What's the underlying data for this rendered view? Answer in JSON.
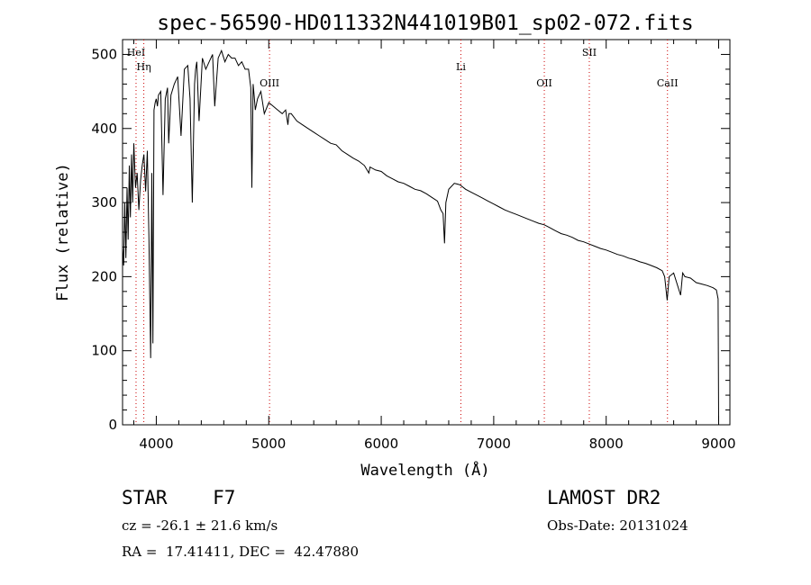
{
  "chart_data": {
    "type": "line",
    "title": "spec-56590-HD011332N441019B01_sp02-072.fits",
    "xlabel": "Wavelength (Å)",
    "ylabel": "Flux (relative)",
    "xlim": [
      3700,
      9100
    ],
    "ylim": [
      0,
      520
    ],
    "xticks": [
      4000,
      5000,
      6000,
      7000,
      8000,
      9000
    ],
    "yticks": [
      0,
      100,
      200,
      300,
      400,
      500
    ],
    "grid": false,
    "line_color": "#000000",
    "marker_color": "#cc0000",
    "series": [
      {
        "x": [
          3700,
          3710,
          3720,
          3730,
          3740,
          3750,
          3760,
          3770,
          3780,
          3790,
          3800,
          3815,
          3830,
          3845,
          3860,
          3875,
          3890,
          3905,
          3920,
          3935,
          3950,
          3960,
          3970,
          3980,
          3990,
          4000,
          4010,
          4020,
          4040,
          4060,
          4080,
          4100,
          4110,
          4130,
          4160,
          4190,
          4220,
          4250,
          4280,
          4300,
          4320,
          4340,
          4350,
          4360,
          4380,
          4410,
          4440,
          4470,
          4500,
          4520,
          4550,
          4580,
          4610,
          4640,
          4670,
          4700,
          4730,
          4760,
          4790,
          4820,
          4840,
          4850,
          4861,
          4870,
          4880,
          4900,
          4930,
          4960,
          5000,
          5040,
          5080,
          5120,
          5150,
          5170,
          5180,
          5200,
          5250,
          5300,
          5350,
          5400,
          5450,
          5500,
          5550,
          5600,
          5650,
          5700,
          5750,
          5800,
          5850,
          5890,
          5900,
          5950,
          6000,
          6050,
          6100,
          6150,
          6200,
          6250,
          6300,
          6350,
          6400,
          6450,
          6500,
          6530,
          6550,
          6563,
          6575,
          6600,
          6650,
          6700,
          6750,
          6800,
          6850,
          6900,
          6950,
          7000,
          7050,
          7100,
          7150,
          7200,
          7250,
          7300,
          7350,
          7400,
          7450,
          7500,
          7550,
          7600,
          7650,
          7700,
          7750,
          7800,
          7850,
          7900,
          7950,
          8000,
          8050,
          8100,
          8150,
          8200,
          8250,
          8300,
          8350,
          8400,
          8450,
          8498,
          8520,
          8542,
          8560,
          8600,
          8662,
          8680,
          8700,
          8750,
          8800,
          8850,
          8900,
          8950,
          8980,
          8995,
          9000
        ],
        "y": [
          240,
          215,
          300,
          225,
          320,
          250,
          350,
          280,
          365,
          300,
          380,
          320,
          340,
          290,
          330,
          350,
          365,
          315,
          370,
          250,
          90,
          340,
          110,
          425,
          435,
          440,
          430,
          445,
          450,
          310,
          440,
          455,
          380,
          445,
          460,
          470,
          390,
          480,
          485,
          440,
          300,
          460,
          480,
          490,
          410,
          495,
          480,
          490,
          500,
          430,
          495,
          505,
          490,
          500,
          495,
          495,
          485,
          490,
          480,
          480,
          455,
          320,
          460,
          445,
          425,
          440,
          450,
          420,
          435,
          430,
          425,
          420,
          425,
          405,
          420,
          420,
          410,
          405,
          400,
          395,
          390,
          385,
          380,
          378,
          370,
          365,
          360,
          356,
          350,
          340,
          348,
          344,
          342,
          336,
          332,
          328,
          326,
          322,
          318,
          316,
          312,
          307,
          302,
          290,
          285,
          245,
          300,
          318,
          326,
          324,
          318,
          314,
          310,
          306,
          302,
          298,
          294,
          290,
          287,
          284,
          281,
          278,
          275,
          272,
          270,
          266,
          262,
          258,
          256,
          253,
          249,
          247,
          244,
          241,
          238,
          236,
          233,
          230,
          228,
          225,
          223,
          220,
          218,
          215,
          212,
          208,
          200,
          168,
          200,
          205,
          175,
          205,
          200,
          198,
          192,
          190,
          188,
          185,
          182,
          170,
          5
        ]
      }
    ],
    "line_markers": [
      {
        "label": "HeI",
        "x": 3820,
        "row": 0
      },
      {
        "label": "Hη",
        "x": 3889,
        "row": 1
      },
      {
        "label": "OIII",
        "x": 5007,
        "row": 2
      },
      {
        "label": "Li",
        "x": 6708,
        "row": 1
      },
      {
        "label": "OII",
        "x": 7450,
        "row": 2
      },
      {
        "label": "SII",
        "x": 7850,
        "row": 0
      },
      {
        "label": "CaII",
        "x": 8545,
        "row": 2
      }
    ]
  },
  "info": {
    "class_label": "STAR    F7",
    "survey": "LAMOST DR2",
    "cz_text": "cz = -26.1 ± 21.6 km/s",
    "obs_date": "Obs-Date: 20131024",
    "coords": "RA =  17.41411, DEC =  42.47880"
  }
}
